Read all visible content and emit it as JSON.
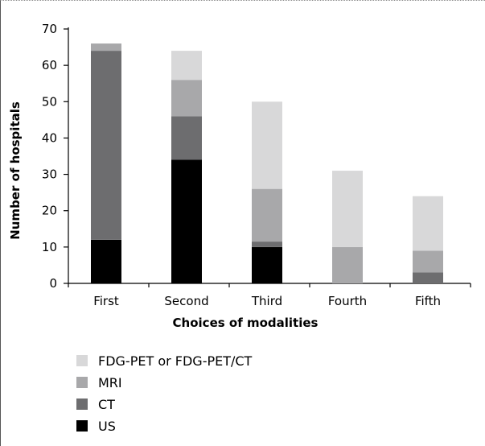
{
  "chart_data": {
    "type": "bar",
    "stacked": true,
    "title": "",
    "xlabel": "Choices of modalities",
    "ylabel": "Number of hospitals",
    "categories": [
      "First",
      "Second",
      "Third",
      "Fourth",
      "Fifth"
    ],
    "ylim": [
      0,
      70
    ],
    "yticks": [
      0,
      10,
      20,
      30,
      40,
      50,
      60,
      70
    ],
    "grid": false,
    "legend_position": "bottom",
    "series": [
      {
        "name": "US",
        "color": "#000000",
        "values": [
          12,
          34,
          10,
          0,
          0
        ]
      },
      {
        "name": "CT",
        "color": "#6d6d6f",
        "values": [
          52,
          12,
          1.5,
          0,
          3
        ]
      },
      {
        "name": "MRI",
        "color": "#a8a8aa",
        "values": [
          2,
          10,
          14.5,
          10,
          6
        ]
      },
      {
        "name": "FDG-PET or FDG-PET/CT",
        "color": "#d8d8d9",
        "values": [
          0,
          8,
          24,
          21,
          15
        ]
      }
    ],
    "legend_order": [
      "FDG-PET or FDG-PET/CT",
      "MRI",
      "CT",
      "US"
    ]
  }
}
